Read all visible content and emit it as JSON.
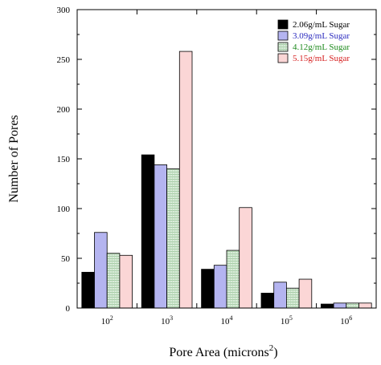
{
  "chart_data": {
    "type": "bar",
    "xlabel_main": "Pore Area (microns",
    "xlabel_sup": "2",
    "xlabel_end": ")",
    "ylabel": "Number of Pores",
    "ylim": [
      0,
      300
    ],
    "yticks": [
      "0",
      "50",
      "100",
      "150",
      "200",
      "250",
      "300"
    ],
    "categories": [
      {
        "base": "10",
        "exp": "2"
      },
      {
        "base": "10",
        "exp": "3"
      },
      {
        "base": "10",
        "exp": "4"
      },
      {
        "base": "10",
        "exp": "5"
      },
      {
        "base": "10",
        "exp": "6"
      }
    ],
    "legend_position": "top-right",
    "grid": false,
    "series": [
      {
        "name": "2.06g/mL Sugar",
        "values": [
          36,
          154,
          39,
          15,
          4
        ],
        "fill": "#000000",
        "text_color": "#000000",
        "pattern": "solid"
      },
      {
        "name": "3.09g/mL Sugar",
        "values": [
          76,
          144,
          43,
          26,
          5
        ],
        "fill": "#b4b4f0",
        "text_color": "#2b2bbf",
        "pattern": "solid"
      },
      {
        "name": "4.12g/mL Sugar",
        "values": [
          55,
          140,
          58,
          20,
          5
        ],
        "fill": "#cfe3cf",
        "text_color": "#1e8a1e",
        "pattern": "hatch"
      },
      {
        "name": "5.15g/mL Sugar",
        "values": [
          53,
          258,
          101,
          29,
          5
        ],
        "fill": "#fbd6d6",
        "text_color": "#d62020",
        "pattern": "solid"
      }
    ]
  }
}
